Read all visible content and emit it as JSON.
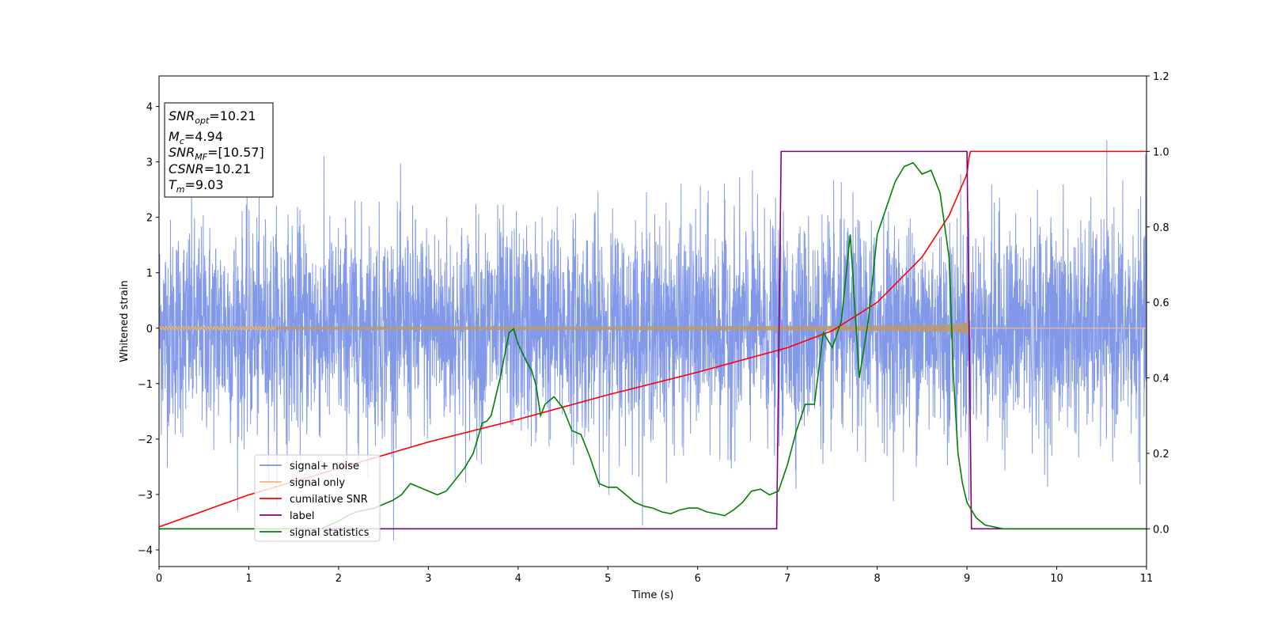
{
  "chart_data": {
    "type": "line",
    "xlabel": "Time (s)",
    "ylabel": "Whitened strain",
    "xlim": [
      0,
      11
    ],
    "ylim": [
      -4.3,
      4.55
    ],
    "y2lim": [
      -0.1,
      1.2
    ],
    "grid": false,
    "legend_position": "lower-left",
    "xticks": [
      "0",
      "1",
      "2",
      "3",
      "4",
      "5",
      "6",
      "7",
      "8",
      "9",
      "10",
      "11"
    ],
    "yticks": [
      "−4",
      "−3",
      "−2",
      "−1",
      "0",
      "1",
      "2",
      "3",
      "4"
    ],
    "y2ticks": [
      "0.0",
      "0.2",
      "0.4",
      "0.6",
      "0.8",
      "1.0",
      "1.2"
    ],
    "annotation": {
      "snr_opt": {
        "base": "SNR",
        "sub": "opt",
        "value": "=10.21"
      },
      "mc": {
        "base": "M",
        "sub": "c",
        "value": "=4.94"
      },
      "snr_mf": {
        "base": "SNR",
        "sub": "MF",
        "value": "=[10.57]"
      },
      "csnr": {
        "base": "CSNR",
        "sub": "",
        "value": "=10.21"
      },
      "tm": {
        "base": "T",
        "sub": "m",
        "value": "=9.03"
      }
    },
    "series": [
      {
        "name": "signal+ noise",
        "color": "#7b93e8",
        "axis": "left",
        "kind": "noise",
        "sigma": 0.95,
        "merger_time": 9.03
      },
      {
        "name": "signal only",
        "color": "#f5b97a",
        "axis": "left",
        "kind": "chirp",
        "start_amplitude": 0.05,
        "max_amplitude": 0.35,
        "merger_time": 9.03
      },
      {
        "name": "cumilative SNR",
        "color": "#ff0000",
        "axis": "right",
        "kind": "cumulative",
        "x": [
          0,
          1,
          2,
          3,
          4,
          5,
          6,
          7,
          7.5,
          8,
          8.5,
          8.8,
          9.0,
          9.03,
          11
        ],
        "y": [
          0.005,
          0.09,
          0.16,
          0.23,
          0.29,
          0.355,
          0.415,
          0.48,
          0.525,
          0.6,
          0.72,
          0.83,
          0.94,
          1.0,
          1.0
        ]
      },
      {
        "name": "label",
        "color": "#800080",
        "axis": "right",
        "kind": "step",
        "x": [
          0,
          6.88,
          6.93,
          9.0,
          9.05,
          11
        ],
        "y": [
          0,
          0,
          1,
          1,
          0,
          0
        ]
      },
      {
        "name": "signal statistics",
        "color": "#008000",
        "axis": "right",
        "kind": "line",
        "x": [
          0,
          1.0,
          1.8,
          2.0,
          2.1,
          2.2,
          2.3,
          2.4,
          2.5,
          2.6,
          2.7,
          2.8,
          2.9,
          3.0,
          3.1,
          3.2,
          3.3,
          3.4,
          3.5,
          3.6,
          3.65,
          3.7,
          3.8,
          3.9,
          3.95,
          4.0,
          4.1,
          4.15,
          4.2,
          4.25,
          4.3,
          4.4,
          4.5,
          4.6,
          4.7,
          4.8,
          4.9,
          5.0,
          5.1,
          5.2,
          5.3,
          5.4,
          5.5,
          5.6,
          5.7,
          5.8,
          5.9,
          6.0,
          6.1,
          6.2,
          6.3,
          6.4,
          6.5,
          6.6,
          6.7,
          6.8,
          6.9,
          7.0,
          7.1,
          7.2,
          7.3,
          7.4,
          7.5,
          7.6,
          7.7,
          7.8,
          7.9,
          8.0,
          8.1,
          8.2,
          8.3,
          8.4,
          8.5,
          8.6,
          8.7,
          8.8,
          8.85,
          8.9,
          8.95,
          9.0,
          9.1,
          9.2,
          9.4,
          11
        ],
        "y": [
          0.0,
          0.0,
          0.0,
          0.02,
          0.035,
          0.045,
          0.05,
          0.055,
          0.065,
          0.075,
          0.09,
          0.12,
          0.11,
          0.1,
          0.09,
          0.1,
          0.13,
          0.16,
          0.2,
          0.28,
          0.285,
          0.3,
          0.4,
          0.52,
          0.53,
          0.49,
          0.44,
          0.42,
          0.38,
          0.3,
          0.33,
          0.35,
          0.32,
          0.26,
          0.25,
          0.19,
          0.12,
          0.11,
          0.11,
          0.09,
          0.07,
          0.06,
          0.055,
          0.045,
          0.04,
          0.05,
          0.055,
          0.055,
          0.045,
          0.04,
          0.035,
          0.05,
          0.07,
          0.1,
          0.105,
          0.09,
          0.1,
          0.17,
          0.26,
          0.33,
          0.33,
          0.52,
          0.48,
          0.55,
          0.78,
          0.4,
          0.55,
          0.78,
          0.85,
          0.92,
          0.96,
          0.97,
          0.94,
          0.95,
          0.89,
          0.72,
          0.4,
          0.2,
          0.12,
          0.07,
          0.03,
          0.01,
          0.0,
          0.0
        ]
      }
    ]
  }
}
